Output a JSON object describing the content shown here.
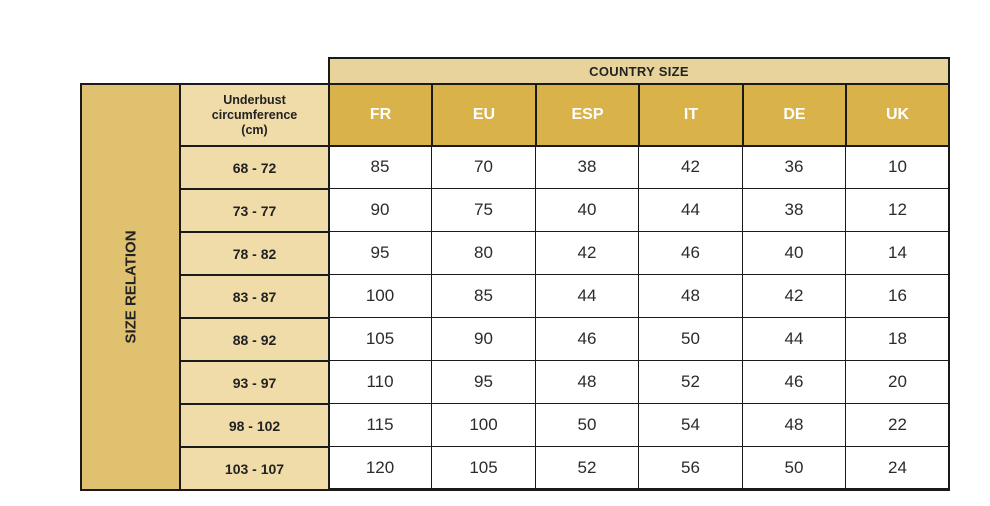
{
  "table": {
    "country_size_label": "COUNTRY SIZE",
    "size_relation_label": "SIZE RELATION",
    "underbust_header": [
      "Underbust",
      "circumference",
      "(cm)"
    ],
    "columns": [
      "FR",
      "EU",
      "ESP",
      "IT",
      "DE",
      "UK"
    ],
    "rows": [
      {
        "range": "68 - 72",
        "values": [
          "85",
          "70",
          "38",
          "42",
          "36",
          "10"
        ]
      },
      {
        "range": "73 - 77",
        "values": [
          "90",
          "75",
          "40",
          "44",
          "38",
          "12"
        ]
      },
      {
        "range": "78 - 82",
        "values": [
          "95",
          "80",
          "42",
          "46",
          "40",
          "14"
        ]
      },
      {
        "range": "83 - 87",
        "values": [
          "100",
          "85",
          "44",
          "48",
          "42",
          "16"
        ]
      },
      {
        "range": "88 - 92",
        "values": [
          "105",
          "90",
          "46",
          "50",
          "44",
          "18"
        ]
      },
      {
        "range": "93 - 97",
        "values": [
          "110",
          "95",
          "48",
          "52",
          "46",
          "20"
        ]
      },
      {
        "range": "98 - 102",
        "values": [
          "115",
          "100",
          "50",
          "54",
          "48",
          "22"
        ]
      },
      {
        "range": "103 - 107",
        "values": [
          "120",
          "105",
          "52",
          "56",
          "50",
          "24"
        ]
      }
    ]
  },
  "colors": {
    "header_gold": "#d9b24a",
    "band_light": "#e8d49a",
    "row_header": "#f0dca8",
    "side_band": "#e0c170",
    "grid_line": "#1a1a1a"
  }
}
